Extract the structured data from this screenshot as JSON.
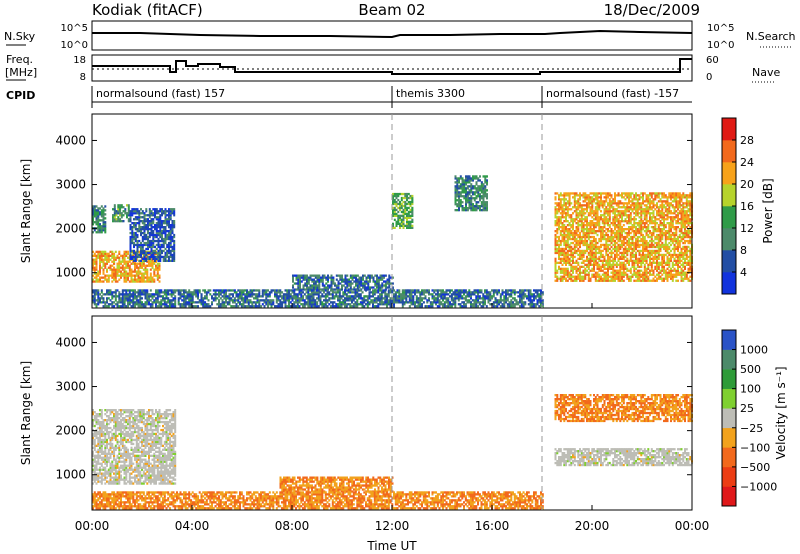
{
  "header": {
    "station": "Kodiak (fitACF)",
    "beam": "Beam 02",
    "date": "18/Dec/2009"
  },
  "summary_panels": {
    "nsky_label": "N.Sky",
    "nsky_ticks": [
      "10^5",
      "10^0"
    ],
    "nsearch_label": "N.Search",
    "nsearch_ticks": [
      "10^5",
      "10^0"
    ],
    "freq_label": [
      "Freq.",
      "[MHz]"
    ],
    "freq_ticks": [
      "18",
      "8"
    ],
    "nave_label": "Nave",
    "nave_ticks": [
      "60",
      "0"
    ],
    "cpid_label": "CPID",
    "cpid_segments": [
      {
        "name": "normalsound (fast) 157",
        "start_hour": 0,
        "end_hour": 12
      },
      {
        "name": "themis 3300",
        "start_hour": 12,
        "end_hour": 18
      },
      {
        "name": "normalsound (fast) -157",
        "start_hour": 18,
        "end_hour": 24
      }
    ]
  },
  "axes": {
    "x_ticks": [
      "00:00",
      "04:00",
      "08:00",
      "12:00",
      "16:00",
      "20:00",
      "00:00"
    ],
    "x_title": "Time UT",
    "y_title": "Slant Range [km]",
    "y_ticks": [
      "1000",
      "2000",
      "3000",
      "4000"
    ]
  },
  "power_colorbar": {
    "title": "Power [dB]",
    "ticks": [
      "4",
      "8",
      "12",
      "16",
      "20",
      "24",
      "28"
    ],
    "colors": [
      "#1133dd",
      "#224ea4",
      "#4c8a6a",
      "#2f9b48",
      "#b6d32c",
      "#f7a21a",
      "#f2691c",
      "#e01a14"
    ]
  },
  "velocity_colorbar": {
    "title": "Velocity [m s⁻¹]",
    "ticks": [
      "1000",
      "500",
      "100",
      "25",
      "−25",
      "−100",
      "−500",
      "−1000"
    ],
    "colors": [
      "#2a53c7",
      "#4c8a6a",
      "#2e9b38",
      "#7fd030",
      "#bdbdb6",
      "#f2a21c",
      "#f2691c",
      "#ec3d14",
      "#e0181a"
    ]
  },
  "chart_data": [
    {
      "type": "heatmap",
      "title": "Power",
      "xlabel": "Time UT",
      "ylabel": "Slant Range [km]",
      "xlim": [
        0,
        24
      ],
      "ylim": [
        200,
        4600
      ],
      "colorbar": "Power [dB]",
      "regions": [
        {
          "t": [
            0.0,
            2.7
          ],
          "r": [
            780,
            1480
          ],
          "value": 22
        },
        {
          "t": [
            0.0,
            0.5
          ],
          "r": [
            1900,
            2500
          ],
          "value": 10
        },
        {
          "t": [
            0.8,
            1.5
          ],
          "r": [
            2150,
            2550
          ],
          "value": 12
        },
        {
          "t": [
            1.5,
            3.3
          ],
          "r": [
            1250,
            2450
          ],
          "value": 6
        },
        {
          "t": [
            8.0,
            12.0
          ],
          "r": [
            600,
            950
          ],
          "value": 8
        },
        {
          "t": [
            12.0,
            12.8
          ],
          "r": [
            2000,
            2800
          ],
          "value": 14
        },
        {
          "t": [
            14.5,
            15.8
          ],
          "r": [
            2400,
            3200
          ],
          "value": 10
        },
        {
          "t": [
            18.5,
            24.0
          ],
          "r": [
            800,
            2800
          ],
          "value": 22
        },
        {
          "t": [
            0.0,
            18.0
          ],
          "r": [
            220,
            600
          ],
          "value": 8
        }
      ]
    },
    {
      "type": "heatmap",
      "title": "Velocity",
      "xlabel": "Time UT",
      "ylabel": "Slant Range [km]",
      "xlim": [
        0,
        24
      ],
      "ylim": [
        200,
        4600
      ],
      "colorbar": "Velocity [m s⁻¹]",
      "regions": [
        {
          "t": [
            0.0,
            3.3
          ],
          "r": [
            780,
            2450
          ],
          "value": 0
        },
        {
          "t": [
            7.5,
            12.0
          ],
          "r": [
            600,
            950
          ],
          "value": -100
        },
        {
          "t": [
            18.5,
            24.0
          ],
          "r": [
            1200,
            1600
          ],
          "value": 0
        },
        {
          "t": [
            18.5,
            24.0
          ],
          "r": [
            2200,
            2800
          ],
          "value": -100
        },
        {
          "t": [
            0.0,
            18.0
          ],
          "r": [
            220,
            600
          ],
          "value": -100
        }
      ]
    }
  ]
}
